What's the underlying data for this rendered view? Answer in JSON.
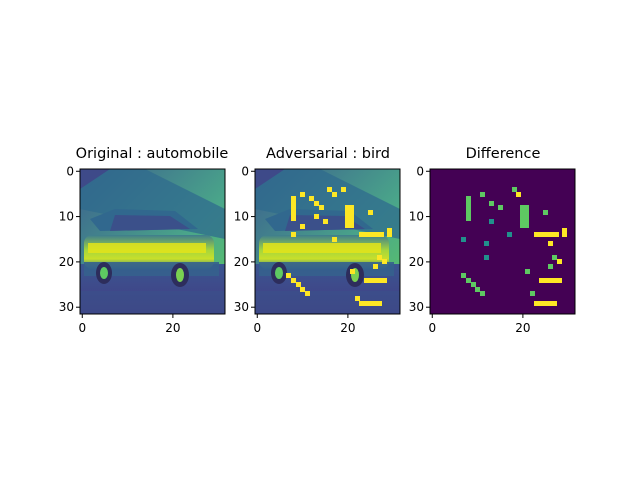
{
  "figure": {
    "panels": [
      {
        "title": "Original : automobile",
        "content": "car-image"
      },
      {
        "title": "Adversarial : bird",
        "content": "perturbed-car-image"
      },
      {
        "title": "Difference",
        "content": "difference-map"
      }
    ],
    "x_ticks": [
      "0",
      "20"
    ],
    "y_ticks": [
      "0",
      "10",
      "20",
      "30"
    ]
  },
  "colors": {
    "background_dark": "#440154",
    "teal": "#21918c",
    "green": "#5ec962",
    "yellow": "#fde725"
  }
}
